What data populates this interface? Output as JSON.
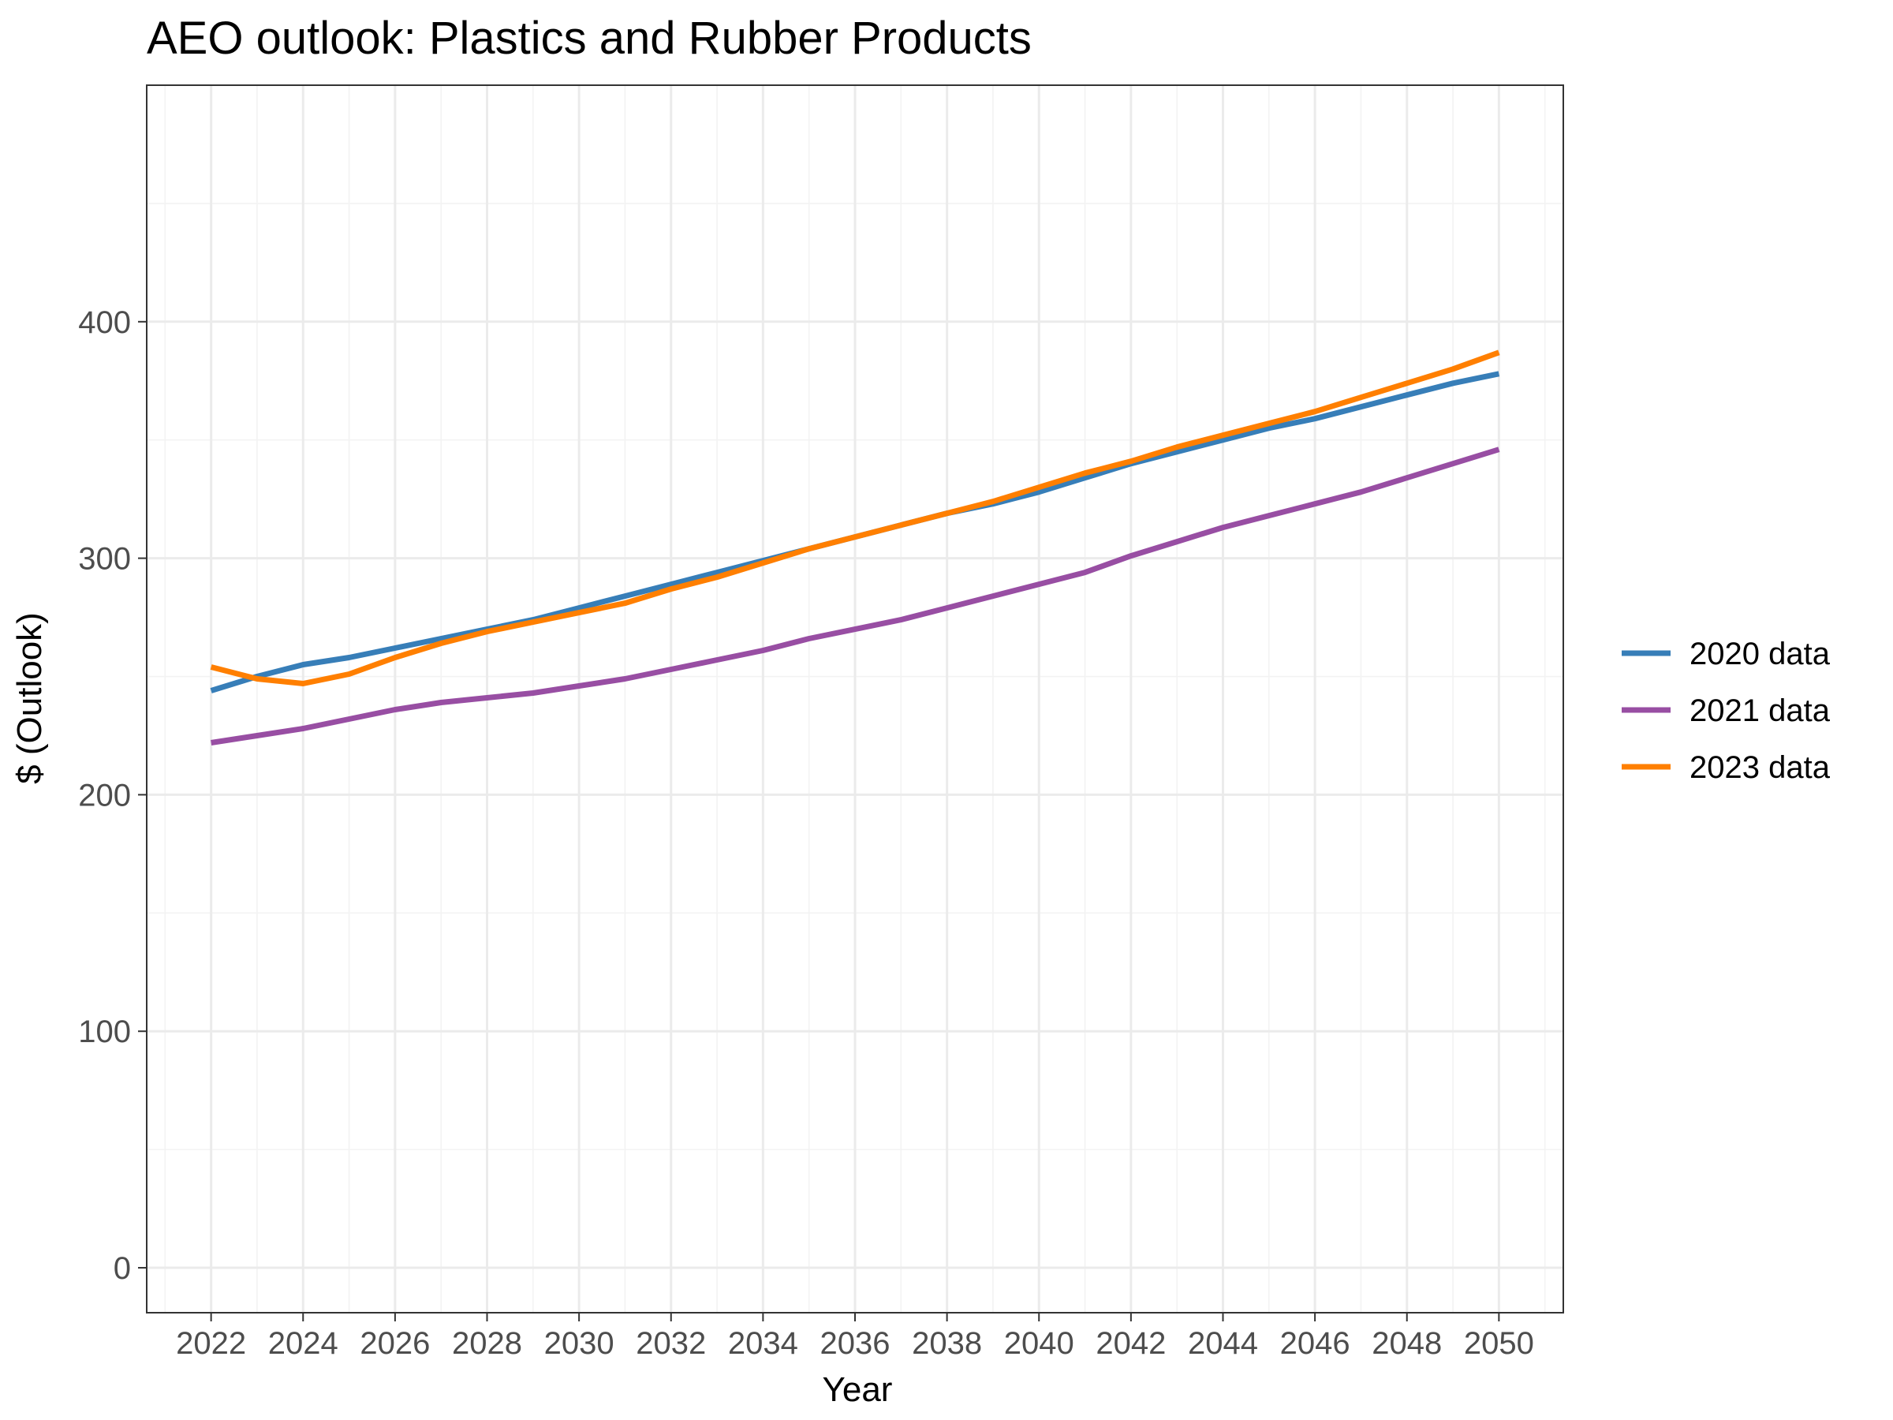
{
  "chart_data": {
    "type": "line",
    "title": "AEO outlook: Plastics and Rubber Products",
    "xlabel": "Year",
    "ylabel": "$ (Outlook)",
    "xlim": [
      2020.6,
      2051.4
    ],
    "ylim": [
      -19,
      500
    ],
    "x_ticks": [
      2022,
      2024,
      2026,
      2028,
      2030,
      2032,
      2034,
      2036,
      2038,
      2040,
      2042,
      2044,
      2046,
      2048,
      2050
    ],
    "y_ticks": [
      0,
      100,
      200,
      300,
      400
    ],
    "grid": true,
    "legend_position": "right",
    "x": [
      2022,
      2023,
      2024,
      2025,
      2026,
      2027,
      2028,
      2029,
      2030,
      2031,
      2032,
      2033,
      2034,
      2035,
      2036,
      2037,
      2038,
      2039,
      2040,
      2041,
      2042,
      2043,
      2044,
      2045,
      2046,
      2047,
      2048,
      2049,
      2050
    ],
    "series": [
      {
        "name": "2020 data",
        "color": "#377eb8",
        "values": [
          244,
          250,
          255,
          258,
          262,
          266,
          270,
          274,
          279,
          284,
          289,
          294,
          299,
          304,
          309,
          314,
          319,
          323,
          328,
          334,
          340,
          345,
          350,
          355,
          359,
          364,
          369,
          374,
          378
        ]
      },
      {
        "name": "2021 data",
        "color": "#984ea3",
        "values": [
          222,
          225,
          228,
          232,
          236,
          239,
          241,
          243,
          246,
          249,
          253,
          257,
          261,
          266,
          270,
          274,
          279,
          284,
          289,
          294,
          301,
          307,
          313,
          318,
          323,
          328,
          334,
          340,
          346
        ]
      },
      {
        "name": "2023 data",
        "color": "#ff7f00",
        "values": [
          254,
          249,
          247,
          251,
          258,
          264,
          269,
          273,
          277,
          281,
          287,
          292,
          298,
          304,
          309,
          314,
          319,
          324,
          330,
          336,
          341,
          347,
          352,
          357,
          362,
          368,
          374,
          380,
          387
        ]
      }
    ]
  }
}
